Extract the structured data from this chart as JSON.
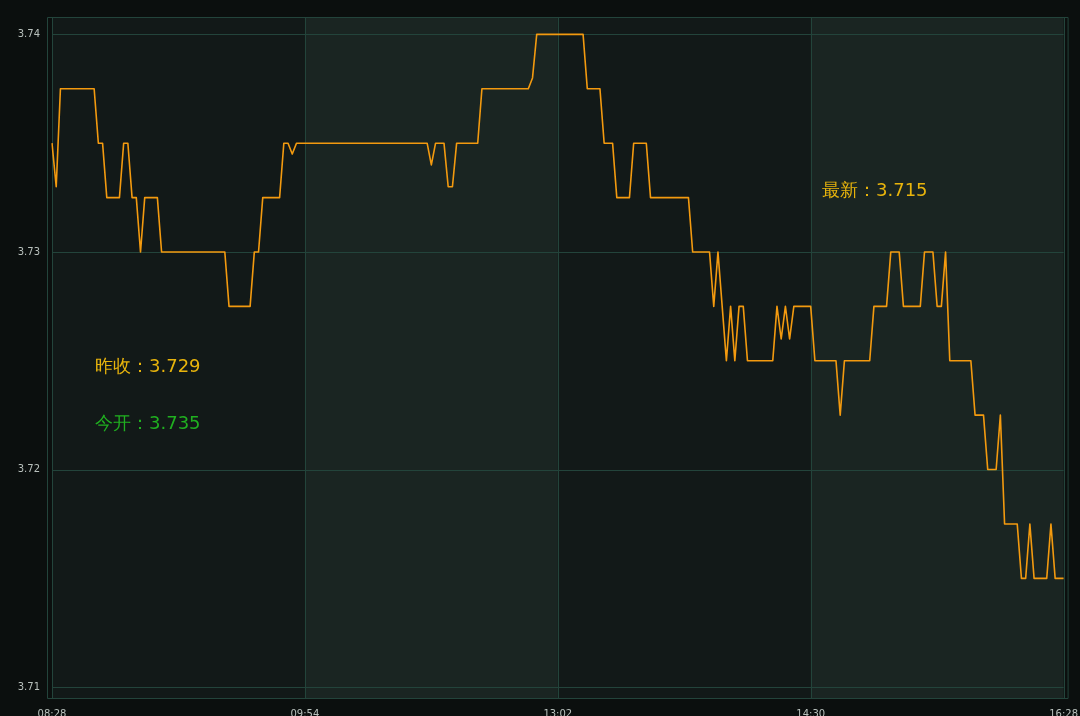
{
  "chart_data": {
    "type": "line",
    "categories": [
      "08:28",
      null,
      null,
      null,
      null,
      null,
      null,
      null,
      null,
      null,
      null,
      null,
      null,
      null,
      null,
      null,
      null,
      null,
      null,
      null,
      null,
      null,
      null,
      null,
      null,
      null,
      null,
      null,
      null,
      null,
      null,
      null,
      null,
      null,
      null,
      null,
      null,
      null,
      null,
      null,
      null,
      null,
      null,
      null,
      null,
      null,
      null,
      null,
      null,
      null,
      null,
      null,
      null,
      null,
      null,
      null,
      null,
      null,
      null,
      null,
      "09:54",
      null,
      null,
      null,
      null,
      null,
      null,
      null,
      null,
      null,
      null,
      null,
      null,
      null,
      null,
      null,
      null,
      null,
      null,
      null,
      null,
      null,
      null,
      null,
      null,
      null,
      null,
      null,
      null,
      null,
      null,
      null,
      null,
      null,
      null,
      null,
      null,
      null,
      null,
      null,
      null,
      null,
      null,
      null,
      null,
      null,
      null,
      null,
      null,
      null,
      null,
      null,
      null,
      null,
      null,
      null,
      null,
      null,
      null,
      null,
      "13:02",
      null,
      null,
      null,
      null,
      null,
      null,
      null,
      null,
      null,
      null,
      null,
      null,
      null,
      null,
      null,
      null,
      null,
      null,
      null,
      null,
      null,
      null,
      null,
      null,
      null,
      null,
      null,
      null,
      null,
      null,
      null,
      null,
      null,
      null,
      null,
      null,
      null,
      null,
      null,
      null,
      null,
      null,
      null,
      null,
      null,
      null,
      null,
      null,
      null,
      null,
      null,
      null,
      null,
      null,
      null,
      null,
      null,
      null,
      null,
      "14:30",
      null,
      null,
      null,
      null,
      null,
      null,
      null,
      null,
      null,
      null,
      null,
      null,
      null,
      null,
      null,
      null,
      null,
      null,
      null,
      null,
      null,
      null,
      null,
      null,
      null,
      null,
      null,
      null,
      null,
      null,
      null,
      null,
      null,
      null,
      null,
      null,
      null,
      null,
      null,
      null,
      null,
      null,
      null,
      null,
      null,
      null,
      null,
      null,
      null,
      null,
      null,
      null,
      null,
      null,
      null,
      null,
      null,
      null,
      null,
      "16:28"
    ],
    "series": [
      {
        "color": "#f39a0f",
        "values": [
          3.735,
          3.733,
          3.7375,
          3.7375,
          3.7375,
          3.7375,
          3.7375,
          3.7375,
          3.7375,
          3.7375,
          3.7375,
          3.735,
          3.735,
          3.7325,
          3.7325,
          3.7325,
          3.7325,
          3.735,
          3.735,
          3.7325,
          3.7325,
          3.73,
          3.7325,
          3.7325,
          3.7325,
          3.7325,
          3.73,
          3.73,
          3.73,
          3.73,
          3.73,
          3.73,
          3.73,
          3.73,
          3.73,
          3.73,
          3.73,
          3.73,
          3.73,
          3.73,
          3.73,
          3.73,
          3.7275,
          3.7275,
          3.7275,
          3.7275,
          3.7275,
          3.7275,
          3.73,
          3.73,
          3.7325,
          3.7325,
          3.7325,
          3.7325,
          3.7325,
          3.735,
          3.735,
          3.7345,
          3.735,
          3.735,
          3.735,
          3.735,
          3.735,
          3.735,
          3.735,
          3.735,
          3.735,
          3.735,
          3.735,
          3.735,
          3.735,
          3.735,
          3.735,
          3.735,
          3.735,
          3.735,
          3.735,
          3.735,
          3.735,
          3.735,
          3.735,
          3.735,
          3.735,
          3.735,
          3.735,
          3.735,
          3.735,
          3.735,
          3.735,
          3.735,
          3.734,
          3.735,
          3.735,
          3.735,
          3.733,
          3.733,
          3.735,
          3.735,
          3.735,
          3.735,
          3.735,
          3.735,
          3.7375,
          3.7375,
          3.7375,
          3.7375,
          3.7375,
          3.7375,
          3.7375,
          3.7375,
          3.7375,
          3.7375,
          3.7375,
          3.7375,
          3.738,
          3.74,
          3.74,
          3.74,
          3.74,
          3.74,
          3.74,
          3.74,
          3.74,
          3.74,
          3.74,
          3.74,
          3.74,
          3.7375,
          3.7375,
          3.7375,
          3.7375,
          3.735,
          3.735,
          3.735,
          3.7325,
          3.7325,
          3.7325,
          3.7325,
          3.735,
          3.735,
          3.735,
          3.735,
          3.7325,
          3.7325,
          3.7325,
          3.7325,
          3.7325,
          3.7325,
          3.7325,
          3.7325,
          3.7325,
          3.7325,
          3.73,
          3.73,
          3.73,
          3.73,
          3.73,
          3.7275,
          3.73,
          3.7275,
          3.725,
          3.7275,
          3.725,
          3.7275,
          3.7275,
          3.725,
          3.725,
          3.725,
          3.725,
          3.725,
          3.725,
          3.725,
          3.7275,
          3.726,
          3.7275,
          3.726,
          3.7275,
          3.7275,
          3.7275,
          3.7275,
          3.7275,
          3.725,
          3.725,
          3.725,
          3.725,
          3.725,
          3.725,
          3.7225,
          3.725,
          3.725,
          3.725,
          3.725,
          3.725,
          3.725,
          3.725,
          3.7275,
          3.7275,
          3.7275,
          3.7275,
          3.73,
          3.73,
          3.73,
          3.7275,
          3.7275,
          3.7275,
          3.7275,
          3.7275,
          3.73,
          3.73,
          3.73,
          3.7275,
          3.7275,
          3.73,
          3.725,
          3.725,
          3.725,
          3.725,
          3.725,
          3.725,
          3.7225,
          3.7225,
          3.7225,
          3.72,
          3.72,
          3.72,
          3.7225,
          3.7175,
          3.7175,
          3.7175,
          3.7175,
          3.715,
          3.715,
          3.7175,
          3.715,
          3.715,
          3.715,
          3.715,
          3.7175,
          3.715,
          3.715,
          3.715
        ]
      }
    ],
    "ylim": [
      3.7095,
      3.7408
    ],
    "yticks": [
      3.71,
      3.72,
      3.73,
      3.74
    ],
    "grid": true,
    "legend": false,
    "marker": "none",
    "line_style": "solid",
    "bands": [
      {
        "axis": "x",
        "from": "09:54",
        "to": "13:02",
        "color": "#1a2522"
      },
      {
        "axis": "x",
        "from": "14:30",
        "to": "16:28",
        "color": "#1a2522"
      }
    ],
    "annotations": [
      "昨收：3.729",
      "今开：3.735",
      "最新：3.715"
    ]
  }
}
